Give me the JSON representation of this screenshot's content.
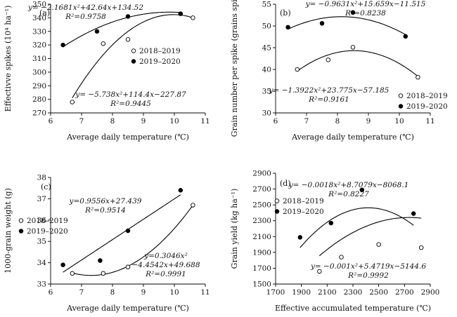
{
  "chart_data": [
    {
      "id": "a",
      "type": "scatter",
      "panel_label": "(a)",
      "xlabel": "Average daily temperature (℃)",
      "ylabel": "Effectivve spikes (10⁴ ha⁻¹)",
      "xlim": [
        6,
        11
      ],
      "ylim": [
        270,
        350
      ],
      "xticks": [
        6,
        7,
        8,
        9,
        10,
        11
      ],
      "yticks": [
        270,
        280,
        290,
        300,
        310,
        320,
        330,
        340,
        350
      ],
      "legend_position": "right",
      "series": [
        {
          "name": "2018–2019",
          "marker": "open",
          "x": [
            6.7,
            7.7,
            8.5,
            10.6
          ],
          "y": [
            278,
            321,
            324,
            340
          ],
          "fit": [
            -5.738,
            114.4,
            -227.87
          ]
        },
        {
          "name": "2019–2020",
          "marker": "filled",
          "x": [
            6.4,
            7.5,
            8.5,
            10.2
          ],
          "y": [
            320,
            330,
            341,
            343
          ],
          "fit": [
            -2.1681,
            42.64,
            134.52
          ]
        }
      ],
      "annotations": [
        {
          "lines": [
            "y= −2.1681x²+42.64x+134.52",
            "R²=0.9758"
          ]
        },
        {
          "lines": [
            "y= −5.738x²+114.4x−227.87",
            "R²=0.9445"
          ]
        }
      ]
    },
    {
      "id": "b",
      "type": "scatter",
      "panel_label": "(b)",
      "xlabel": "Average daily temperature (℃)",
      "ylabel": "Grain number per spike (grains spike⁻¹)",
      "xlim": [
        6,
        11
      ],
      "ylim": [
        30,
        55
      ],
      "xticks": [
        6,
        7,
        8,
        9,
        10,
        11
      ],
      "yticks": [
        30,
        35,
        40,
        45,
        50,
        55
      ],
      "legend_position": "bottom-right",
      "series": [
        {
          "name": "2018–2019",
          "marker": "open",
          "x": [
            6.7,
            7.7,
            8.5,
            10.6
          ],
          "y": [
            40,
            42.2,
            45.1,
            38.2
          ],
          "fit": [
            -1.3922,
            23.775,
            -57.185
          ]
        },
        {
          "name": "2019–2020",
          "marker": "filled",
          "x": [
            6.4,
            7.5,
            8.5,
            10.2
          ],
          "y": [
            49.7,
            50.6,
            53.1,
            47.6
          ],
          "fit": [
            -0.9631,
            15.659,
            -11.515
          ]
        }
      ],
      "annotations": [
        {
          "lines": [
            "y= −0.9631x²+15.659x−11.515",
            "R²=0.8238"
          ]
        },
        {
          "lines": [
            "y= −1.3922x²+23.775x−57.185",
            "R²=0.9161"
          ]
        }
      ]
    },
    {
      "id": "c",
      "type": "scatter",
      "panel_label": "(c)",
      "xlabel": "Average daily temperature (℃)",
      "ylabel": "1000-grain weight (g)",
      "xlim": [
        6,
        11
      ],
      "ylim": [
        33,
        38
      ],
      "xticks": [
        6,
        7,
        8,
        9,
        10,
        11
      ],
      "yticks": [
        33,
        34,
        35,
        36,
        37,
        38
      ],
      "legend_position": "left",
      "series": [
        {
          "name": "2018–2019",
          "marker": "open",
          "x": [
            6.7,
            7.7,
            8.5,
            10.6
          ],
          "y": [
            33.5,
            33.5,
            33.8,
            36.7
          ],
          "fit": [
            0.3046,
            -4.4542,
            49.688
          ]
        },
        {
          "name": "2019–2020",
          "marker": "filled",
          "x": [
            6.4,
            7.6,
            8.5,
            10.2
          ],
          "y": [
            33.9,
            34.1,
            35.5,
            37.4
          ],
          "fit": [
            0,
            0.9556,
            27.439
          ]
        }
      ],
      "annotations": [
        {
          "lines": [
            "y=0.9556x+27.439",
            "R²=0.9514"
          ]
        },
        {
          "lines": [
            "y=0.3046x²",
            "−4.4542x+49.688",
            "R²=0.9991"
          ]
        }
      ]
    },
    {
      "id": "d",
      "type": "scatter",
      "panel_label": "(d)",
      "xlabel": "Effective accumulated temperature (℃)",
      "ylabel": "Grain yield (kg ha⁻¹)",
      "xlim": [
        1700,
        2900
      ],
      "ylim": [
        1500,
        2900
      ],
      "xticks": [
        1700,
        1900,
        2100,
        2300,
        2500,
        2700,
        2900
      ],
      "yticks": [
        1500,
        1700,
        1900,
        2100,
        2300,
        2500,
        2700,
        2900
      ],
      "legend_position": "top-left",
      "series": [
        {
          "name": "2018–2019",
          "marker": "open",
          "x": [
            2040,
            2210,
            2500,
            2830
          ],
          "y": [
            1660,
            1840,
            2000,
            1960
          ],
          "fit": [
            -0.001,
            5.4719,
            -5144.6
          ]
        },
        {
          "name": "2019–2020",
          "marker": "filled",
          "x": [
            1890,
            2130,
            2370,
            2770
          ],
          "y": [
            2090,
            2270,
            2690,
            2390
          ],
          "fit": [
            -0.0018,
            8.7079,
            -8068.1
          ]
        }
      ],
      "annotations": [
        {
          "lines": [
            "y= −0.0018x²+8.7079x−8068.1",
            "R²=0.8227"
          ]
        },
        {
          "lines": [
            "y= −0.001x²+5.4719x−5144.6",
            "R²=0.9992"
          ]
        }
      ]
    }
  ]
}
